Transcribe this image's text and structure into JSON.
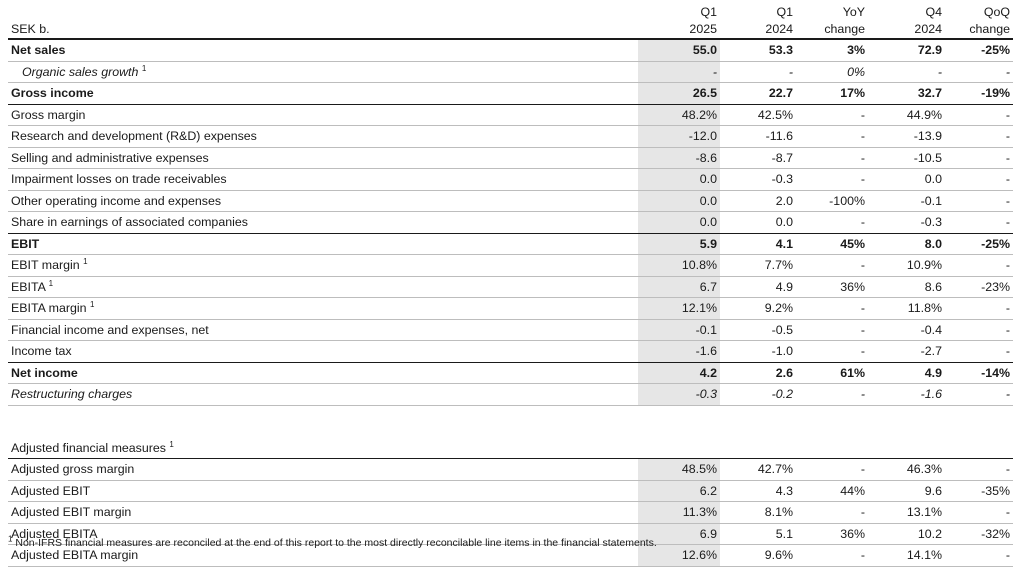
{
  "header": {
    "unit": "SEK b.",
    "columns": [
      {
        "line1": "Q1",
        "line2": "2025"
      },
      {
        "line1": "Q1",
        "line2": "2024"
      },
      {
        "line1": "YoY",
        "line2": "change"
      },
      {
        "line1": "Q4",
        "line2": "2024"
      },
      {
        "line1": "QoQ",
        "line2": "change"
      }
    ]
  },
  "rows": [
    {
      "label": "Net sales",
      "sup": "",
      "style": "bold",
      "values": [
        "55.0",
        "53.3",
        "3%",
        "72.9",
        "-25%"
      ]
    },
    {
      "label": "Organic sales growth",
      "sup": "1",
      "style": "ital-indent",
      "values": [
        "-",
        "-",
        "0%",
        "-",
        "-"
      ]
    },
    {
      "label": "Gross income",
      "sup": "",
      "style": "bold-bline",
      "values": [
        "26.5",
        "22.7",
        "17%",
        "32.7",
        "-19%"
      ]
    },
    {
      "label": "Gross margin",
      "sup": "",
      "style": "",
      "values": [
        "48.2%",
        "42.5%",
        "-",
        "44.9%",
        "-"
      ]
    },
    {
      "label": "Research and development (R&D) expenses",
      "sup": "",
      "style": "",
      "values": [
        "-12.0",
        "-11.6",
        "-",
        "-13.9",
        "-"
      ]
    },
    {
      "label": "Selling and administrative expenses",
      "sup": "",
      "style": "",
      "values": [
        "-8.6",
        "-8.7",
        "-",
        "-10.5",
        "-"
      ]
    },
    {
      "label": "Impairment losses on trade receivables",
      "sup": "",
      "style": "",
      "values": [
        "0.0",
        "-0.3",
        "-",
        "0.0",
        "-"
      ]
    },
    {
      "label": "Other operating income and expenses",
      "sup": "",
      "style": "",
      "values": [
        "0.0",
        "2.0",
        "-100%",
        "-0.1",
        "-"
      ]
    },
    {
      "label": "Share in earnings of associated companies",
      "sup": "",
      "style": "bline",
      "values": [
        "0.0",
        "0.0",
        "-",
        "-0.3",
        "-"
      ]
    },
    {
      "label": "EBIT",
      "sup": "",
      "style": "bold",
      "values": [
        "5.9",
        "4.1",
        "45%",
        "8.0",
        "-25%"
      ]
    },
    {
      "label": "EBIT margin",
      "sup": "1",
      "style": "",
      "values": [
        "10.8%",
        "7.7%",
        "-",
        "10.9%",
        "-"
      ]
    },
    {
      "label": "EBITA",
      "sup": "1",
      "style": "",
      "values": [
        "6.7",
        "4.9",
        "36%",
        "8.6",
        "-23%"
      ]
    },
    {
      "label": "EBITA margin",
      "sup": "1",
      "style": "",
      "values": [
        "12.1%",
        "9.2%",
        "-",
        "11.8%",
        "-"
      ]
    },
    {
      "label": "Financial income and expenses, net",
      "sup": "",
      "style": "",
      "values": [
        "-0.1",
        "-0.5",
        "-",
        "-0.4",
        "-"
      ]
    },
    {
      "label": "Income tax",
      "sup": "",
      "style": "bline",
      "values": [
        "-1.6",
        "-1.0",
        "-",
        "-2.7",
        "-"
      ]
    },
    {
      "label": "Net income",
      "sup": "",
      "style": "bold",
      "values": [
        "4.2",
        "2.6",
        "61%",
        "4.9",
        "-14%"
      ]
    },
    {
      "label": "Restructuring charges",
      "sup": "",
      "style": "ital",
      "values": [
        "-0.3",
        "-0.2",
        "-",
        "-1.6",
        "-"
      ]
    }
  ],
  "adjusted": {
    "title": "Adjusted financial measures",
    "sup": "1",
    "rows": [
      {
        "label": "Adjusted gross margin",
        "values": [
          "48.5%",
          "42.7%",
          "-",
          "46.3%",
          "-"
        ]
      },
      {
        "label": "Adjusted EBIT",
        "values": [
          "6.2",
          "4.3",
          "44%",
          "9.6",
          "-35%"
        ]
      },
      {
        "label": "Adjusted EBIT margin",
        "values": [
          "11.3%",
          "8.1%",
          "-",
          "13.1%",
          "-"
        ]
      },
      {
        "label": "Adjusted EBITA",
        "values": [
          "6.9",
          "5.1",
          "36%",
          "10.2",
          "-32%"
        ]
      },
      {
        "label": "Adjusted EBITA margin",
        "values": [
          "12.6%",
          "9.6%",
          "-",
          "14.1%",
          "-"
        ]
      }
    ]
  },
  "footnote": {
    "marker": "1",
    "text": "Non-IFRS financial measures are reconciled at the end of this report to the most directly reconcilable line items in the financial statements."
  }
}
